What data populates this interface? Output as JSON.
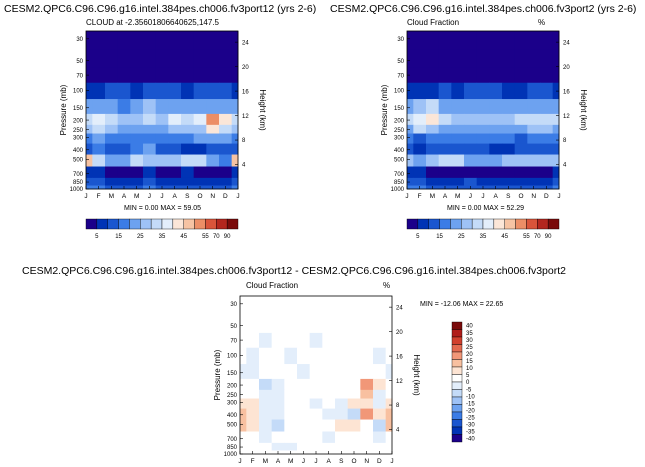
{
  "colors": {
    "scale_main": [
      "#1b008a",
      "#0033b5",
      "#1a56cf",
      "#3b7ce6",
      "#6da2f0",
      "#9ec2f6",
      "#c4dbf8",
      "#e3eefb",
      "#fbe6d8",
      "#f6c3a3",
      "#ec8e66",
      "#d9543a",
      "#b3261e",
      "#7a0b0b"
    ],
    "scale_diff": [
      "#1b008a",
      "#0033b5",
      "#1a56cf",
      "#3b7ce6",
      "#6da2f0",
      "#9ec2f6",
      "#c4dbf8",
      "#e3eefb",
      "#ffffff",
      "#fde4d3",
      "#f8c0a0",
      "#f19778",
      "#e36a50",
      "#d1402e",
      "#b01d1a",
      "#7a0b0b"
    ]
  },
  "panels": {
    "left": {
      "figure_title": "CESM2.QPC6.C96.C96.g16.intel.384pes.ch006.fv3port12 (yrs 2-6)",
      "plot_title": "CLOUD at -2.35601806640625,147.5",
      "plot_unit": "%",
      "minmax": "MIN =   0.00 MAX =  59.05"
    },
    "right": {
      "figure_title": "CESM2.QPC6.C96.C96.g16.intel.384pes.ch006.fv3port2 (yrs 2-6)",
      "plot_title": "Cloud Fraction",
      "plot_unit": "%",
      "minmax": "MIN =   0.00 MAX =  52.29"
    },
    "diff": {
      "figure_title": "CESM2.QPC6.C96.C96.g16.intel.384pes.ch006.fv3port12 - CESM2.QPC6.C96.C96.g16.intel.384pes.ch006.fv3port2",
      "plot_title": "Cloud Fraction",
      "plot_unit": "%",
      "minmax": "MIN = -12.06 MAX =  22.65"
    }
  },
  "chart_data": [
    {
      "type": "heatmap",
      "panel": "left",
      "title": "CLOUD at -2.35601806640625,147.5",
      "xlabel": "",
      "ylabel": "Pressure (mb)",
      "y2label": "Height (km)",
      "x_ticks": [
        "J",
        "F",
        "M",
        "A",
        "M",
        "J",
        "J",
        "A",
        "S",
        "O",
        "N",
        "D",
        "J"
      ],
      "y_ticks": [
        "30",
        "50",
        "70",
        "100",
        "150",
        "200",
        "250",
        "300",
        "400",
        "500",
        "700",
        "850",
        "1000"
      ],
      "y2_ticks": [
        "24",
        "20",
        "16",
        "12",
        "8",
        "4"
      ],
      "y_scale": "log",
      "ylim": [
        1000,
        25
      ],
      "colorbar_labels": [
        "5",
        "15",
        "25",
        "35",
        "45",
        "55",
        "70",
        "90"
      ],
      "colorbar_position": "bottom",
      "min": 0.0,
      "max": 59.05,
      "levels": [
        30,
        50,
        70,
        100,
        150,
        200,
        250,
        300,
        400,
        500,
        700,
        850,
        1000
      ],
      "values": [
        [
          0,
          0,
          0,
          0,
          0,
          0,
          0,
          0,
          0,
          0,
          0,
          0,
          0
        ],
        [
          0,
          0,
          0,
          0,
          0,
          0,
          0,
          0,
          0,
          0,
          0,
          0,
          0
        ],
        [
          1,
          1,
          1,
          1,
          1,
          1,
          1,
          1,
          1,
          1,
          1,
          1,
          1
        ],
        [
          8,
          9,
          10,
          10,
          9,
          10,
          11,
          10,
          9,
          10,
          11,
          10,
          8
        ],
        [
          20,
          22,
          20,
          18,
          22,
          25,
          20,
          24,
          22,
          21,
          22,
          23,
          20
        ],
        [
          34,
          38,
          30,
          25,
          28,
          32,
          28,
          35,
          33,
          36,
          50,
          42,
          34
        ],
        [
          28,
          30,
          26,
          22,
          22,
          24,
          22,
          25,
          26,
          28,
          40,
          34,
          28
        ],
        [
          18,
          22,
          17,
          15,
          16,
          16,
          17,
          18,
          15,
          20,
          24,
          20,
          18
        ],
        [
          14,
          16,
          12,
          10,
          16,
          20,
          12,
          10,
          8,
          6,
          12,
          10,
          14
        ],
        [
          46,
          30,
          22,
          24,
          30,
          28,
          26,
          28,
          34,
          30,
          22,
          18,
          46
        ],
        [
          6,
          5,
          4,
          3,
          4,
          5,
          4,
          3,
          5,
          4,
          3,
          3,
          6
        ],
        [
          12,
          10,
          8,
          7,
          7,
          10,
          8,
          9,
          8,
          9,
          7,
          9,
          12
        ],
        [
          18,
          16,
          14,
          12,
          12,
          16,
          14,
          14,
          12,
          13,
          11,
          14,
          18
        ]
      ]
    },
    {
      "type": "heatmap",
      "panel": "right",
      "title": "Cloud Fraction",
      "xlabel": "",
      "ylabel": "Pressure (mb)",
      "y2label": "Height (km)",
      "x_ticks": [
        "J",
        "F",
        "M",
        "A",
        "M",
        "J",
        "J",
        "A",
        "S",
        "O",
        "N",
        "D",
        "J"
      ],
      "y_ticks": [
        "30",
        "50",
        "70",
        "100",
        "150",
        "200",
        "250",
        "300",
        "400",
        "500",
        "700",
        "850",
        "1000"
      ],
      "y2_ticks": [
        "24",
        "20",
        "16",
        "12",
        "8",
        "4"
      ],
      "y_scale": "log",
      "ylim": [
        1000,
        25
      ],
      "colorbar_labels": [
        "5",
        "15",
        "25",
        "35",
        "45",
        "55",
        "70",
        "90"
      ],
      "colorbar_position": "bottom",
      "min": 0.0,
      "max": 52.29,
      "levels": [
        30,
        50,
        70,
        100,
        150,
        200,
        250,
        300,
        400,
        500,
        700,
        850,
        1000
      ],
      "values": [
        [
          0,
          0,
          0,
          0,
          0,
          0,
          0,
          0,
          0,
          0,
          0,
          0,
          0
        ],
        [
          0,
          0,
          0,
          0,
          0,
          0,
          0,
          0,
          0,
          0,
          0,
          0,
          0
        ],
        [
          1,
          1,
          1,
          1,
          1,
          1,
          1,
          1,
          1,
          1,
          1,
          1,
          1
        ],
        [
          8,
          9,
          9,
          10,
          9,
          10,
          10,
          10,
          9,
          9,
          10,
          10,
          8
        ],
        [
          22,
          26,
          34,
          24,
          20,
          22,
          22,
          21,
          22,
          22,
          24,
          24,
          22
        ],
        [
          30,
          38,
          40,
          30,
          26,
          26,
          26,
          28,
          28,
          30,
          30,
          30,
          30
        ],
        [
          24,
          30,
          28,
          24,
          22,
          22,
          22,
          24,
          24,
          24,
          26,
          26,
          24
        ],
        [
          16,
          12,
          16,
          16,
          16,
          16,
          16,
          18,
          16,
          14,
          16,
          16,
          16
        ],
        [
          10,
          6,
          12,
          12,
          14,
          12,
          12,
          8,
          8,
          10,
          12,
          14,
          10
        ],
        [
          26,
          22,
          26,
          32,
          30,
          22,
          24,
          24,
          26,
          28,
          26,
          28,
          26
        ],
        [
          6,
          5,
          4,
          3,
          4,
          4,
          4,
          3,
          4,
          4,
          3,
          3,
          6
        ],
        [
          12,
          10,
          8,
          7,
          8,
          10,
          8,
          8,
          8,
          9,
          7,
          9,
          12
        ],
        [
          18,
          16,
          14,
          12,
          12,
          14,
          14,
          14,
          12,
          13,
          11,
          14,
          18
        ]
      ]
    },
    {
      "type": "heatmap",
      "panel": "diff",
      "title": "Cloud Fraction",
      "xlabel": "",
      "ylabel": "Pressure (mb)",
      "y2label": "Height (km)",
      "x_ticks": [
        "J",
        "F",
        "M",
        "A",
        "M",
        "J",
        "J",
        "A",
        "S",
        "O",
        "N",
        "D",
        "J"
      ],
      "y_ticks": [
        "30",
        "50",
        "70",
        "100",
        "150",
        "200",
        "250",
        "300",
        "400",
        "500",
        "700",
        "850",
        "1000"
      ],
      "y2_ticks": [
        "24",
        "20",
        "16",
        "12",
        "8",
        "4"
      ],
      "y_scale": "log",
      "ylim": [
        1000,
        25
      ],
      "colorbar_labels": [
        "40",
        "35",
        "30",
        "25",
        "20",
        "15",
        "10",
        "5",
        "0",
        "-5",
        "-10",
        "-15",
        "-20",
        "-25",
        "-30",
        "-35",
        "-40"
      ],
      "colorbar_position": "right",
      "min": -12.06,
      "max": 22.65,
      "levels": [
        30,
        50,
        70,
        100,
        150,
        200,
        250,
        300,
        400,
        500,
        700,
        850,
        1000
      ],
      "values": [
        [
          1,
          1,
          1,
          1,
          1,
          1,
          1,
          1,
          1,
          1,
          1,
          1,
          1
        ],
        [
          1,
          1,
          1,
          1,
          1,
          1,
          1,
          1,
          1,
          1,
          1,
          1,
          1
        ],
        [
          1,
          1,
          -1,
          1,
          1,
          1,
          -1,
          1,
          1,
          1,
          1,
          1,
          1
        ],
        [
          1,
          -2,
          1,
          1,
          -2,
          1,
          1,
          1,
          1,
          1,
          1,
          -2,
          1
        ],
        [
          -2,
          -3,
          2,
          1,
          1,
          -2,
          1,
          2,
          1,
          1,
          1,
          1,
          -2
        ],
        [
          2,
          4,
          -8,
          -4,
          1,
          3,
          2,
          3,
          3,
          4,
          15,
          8,
          2
        ],
        [
          4,
          2,
          -2,
          -2,
          1,
          2,
          1,
          1,
          2,
          4,
          12,
          -4,
          4
        ],
        [
          8,
          9,
          -3,
          -2,
          1,
          1,
          -1,
          1,
          -2,
          5,
          8,
          -2,
          8
        ],
        [
          10,
          9,
          -2,
          -3,
          1,
          3,
          1,
          -2,
          -2,
          -6,
          18,
          6,
          10
        ],
        [
          14,
          8,
          -4,
          -7,
          1,
          4,
          2,
          2,
          8,
          6,
          4,
          -6,
          14
        ],
        [
          1,
          1,
          -2,
          1,
          1,
          1,
          1,
          -2,
          1,
          1,
          1,
          -2,
          1
        ],
        [
          1,
          1,
          1,
          -2,
          -1,
          1,
          1,
          1,
          1,
          1,
          1,
          1,
          1
        ],
        [
          1,
          1,
          1,
          1,
          1,
          1,
          1,
          1,
          1,
          1,
          1,
          1,
          1
        ]
      ]
    }
  ]
}
